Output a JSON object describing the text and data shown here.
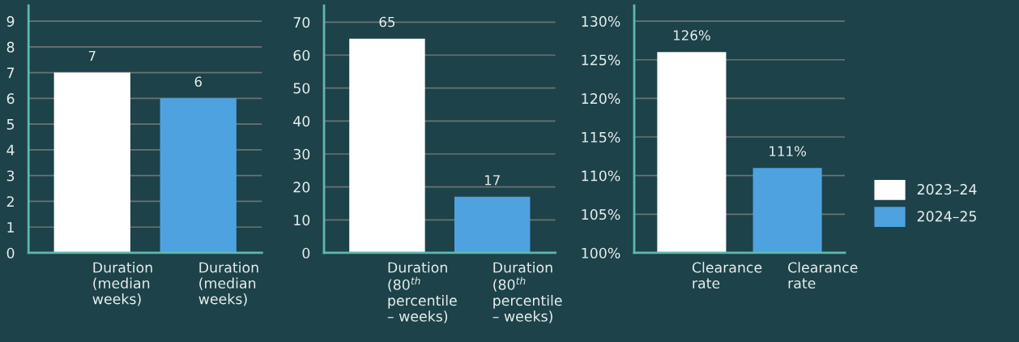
{
  "chart_data": [
    {
      "type": "bar",
      "categories": [
        "Duration (median weeks)",
        "Duration (median weeks)"
      ],
      "values": [
        7,
        6
      ],
      "colors": [
        "#ffffff",
        "#4fa2e0"
      ],
      "ylim": [
        0,
        9.6
      ],
      "yticks": [
        0,
        1,
        2,
        3,
        4,
        5,
        6,
        7,
        8,
        9
      ],
      "grid": "y",
      "data_labels": true
    },
    {
      "type": "bar",
      "categories": [
        "Duration (80$^{th}$ percentile – weeks)",
        "Duration (80$^{th}$ percentile – weeks)"
      ],
      "values": [
        65,
        17
      ],
      "colors": [
        "#ffffff",
        "#4fa2e0"
      ],
      "ylim": [
        0,
        75
      ],
      "yticks": [
        0,
        10,
        20,
        30,
        40,
        50,
        60,
        70
      ],
      "grid": "y",
      "data_labels": true
    },
    {
      "type": "bar",
      "categories": [
        "Clearance rate",
        "Clearance rate"
      ],
      "series": [
        {
          "name": "2023–24",
          "color": "#ffffff",
          "values": [
            126,
            null
          ],
          "value_labels": [
            "126%",
            null
          ]
        },
        {
          "name": "2024–25",
          "color": "#4fa2e0",
          "values": [
            null,
            111
          ],
          "value_labels": [
            null,
            "111%"
          ]
        }
      ],
      "ylim": [
        100,
        132
      ],
      "yticks": [
        {
          "value": 100,
          "label": "100%"
        },
        {
          "value": 105,
          "label": "105%"
        },
        {
          "value": 110,
          "label": "110%"
        },
        {
          "value": 115,
          "label": "115%"
        },
        {
          "value": 120,
          "label": "120%"
        },
        {
          "value": 125,
          "label": "125%"
        },
        {
          "value": 130,
          "label": "130%"
        }
      ],
      "grid": "y",
      "legend": "right"
    }
  ]
}
